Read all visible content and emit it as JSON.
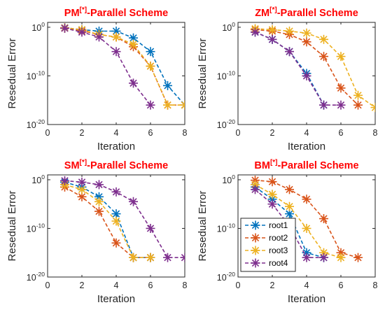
{
  "colors": {
    "root1": "#0072bd",
    "root2": "#d95319",
    "root3": "#edb120",
    "root4": "#7e2f8e",
    "title": "#ff0000"
  },
  "chart_data": [
    {
      "type": "line",
      "title": {
        "main": "PM",
        "sup": "[*]",
        "rest": "-Parallel Scheme"
      },
      "xlabel": "Iteration",
      "ylabel": "Resedual Error",
      "xlim": [
        0,
        8
      ],
      "xticks": [
        "0",
        "2",
        "4",
        "6",
        "8"
      ],
      "ylim_log10": [
        -20,
        1
      ],
      "yticks": [
        {
          "base": "10",
          "exp": "0"
        },
        {
          "base": "10",
          "exp": "-10"
        },
        {
          "base": "10",
          "exp": "-20"
        }
      ],
      "yscale": "log",
      "grid": false,
      "series": [
        {
          "name": "root1",
          "x": [
            1,
            2,
            3,
            4,
            5,
            6,
            7,
            8
          ],
          "log10_y": [
            -0.1,
            -0.5,
            -0.8,
            -0.8,
            -2.2,
            -5.0,
            -12.0,
            -16.0
          ]
        },
        {
          "name": "root2",
          "x": [
            1,
            2,
            3,
            4,
            5,
            6,
            7,
            8
          ],
          "log10_y": [
            -0.2,
            -0.7,
            -1.5,
            -2.0,
            -4.0,
            -8.0,
            -16.0,
            -16.0
          ]
        },
        {
          "name": "root3",
          "x": [
            1,
            2,
            3,
            4,
            5,
            6,
            7,
            8
          ],
          "log10_y": [
            -0.1,
            -0.5,
            -1.5,
            -2.0,
            -3.5,
            -8.0,
            -16.0,
            -16.0
          ]
        },
        {
          "name": "root4",
          "x": [
            1,
            2,
            3,
            4,
            5,
            6
          ],
          "log10_y": [
            -0.2,
            -1.0,
            -2.0,
            -5.0,
            -11.5,
            -16.0
          ]
        }
      ]
    },
    {
      "type": "line",
      "title": {
        "main": "ZM",
        "sup": "[*]",
        "rest": "-Parallel Scheme"
      },
      "xlabel": "Iteration",
      "ylabel": "Resedual Error",
      "xlim": [
        0,
        8
      ],
      "xticks": [
        "0",
        "2",
        "4",
        "6",
        "8"
      ],
      "ylim_log10": [
        -20,
        1
      ],
      "yticks": [
        {
          "base": "10",
          "exp": "0"
        },
        {
          "base": "10",
          "exp": "-10"
        },
        {
          "base": "10",
          "exp": "-20"
        }
      ],
      "yscale": "log",
      "grid": false,
      "series": [
        {
          "name": "root1",
          "x": [
            1,
            2,
            3,
            4,
            5
          ],
          "log10_y": [
            -1.0,
            -2.5,
            -5.0,
            -9.5,
            -16.0
          ]
        },
        {
          "name": "root2",
          "x": [
            1,
            2,
            3,
            4,
            5,
            6,
            7
          ],
          "log10_y": [
            -0.5,
            -0.8,
            -1.5,
            -3.0,
            -6.0,
            -12.5,
            -16.0
          ]
        },
        {
          "name": "root3",
          "x": [
            1,
            2,
            3,
            4,
            5,
            6,
            7,
            8
          ],
          "log10_y": [
            -0.3,
            -0.5,
            -0.8,
            -1.2,
            -2.5,
            -6.0,
            -14.0,
            -16.5
          ]
        },
        {
          "name": "root4",
          "x": [
            1,
            2,
            3,
            4,
            5,
            6
          ],
          "log10_y": [
            -1.0,
            -2.5,
            -5.0,
            -10.0,
            -16.0,
            -16.0
          ]
        }
      ]
    },
    {
      "type": "line",
      "title": {
        "main": "SM",
        "sup": "[*]",
        "rest": "-Parallel Scheme"
      },
      "xlabel": "Iteration",
      "ylabel": "Resedual Error",
      "xlim": [
        0,
        8
      ],
      "xticks": [
        "0",
        "2",
        "4",
        "6",
        "8"
      ],
      "ylim_log10": [
        -20,
        1
      ],
      "yticks": [
        {
          "base": "10",
          "exp": "0"
        },
        {
          "base": "10",
          "exp": "-10"
        },
        {
          "base": "10",
          "exp": "-20"
        }
      ],
      "yscale": "log",
      "grid": false,
      "series": [
        {
          "name": "root1",
          "x": [
            1,
            2,
            3,
            4,
            5,
            6
          ],
          "log10_y": [
            -0.5,
            -1.5,
            -3.5,
            -7.0,
            -16.0,
            -16.0
          ]
        },
        {
          "name": "root2",
          "x": [
            1,
            2,
            3,
            4,
            5,
            6
          ],
          "log10_y": [
            -1.5,
            -3.5,
            -6.5,
            -13.0,
            -16.0,
            -16.0
          ]
        },
        {
          "name": "root3",
          "x": [
            1,
            2,
            3,
            4,
            5,
            6
          ],
          "log10_y": [
            -1.0,
            -2.0,
            -4.5,
            -8.5,
            -16.0,
            -16.0
          ]
        },
        {
          "name": "root4",
          "x": [
            1,
            2,
            3,
            4,
            5,
            6,
            7,
            8
          ],
          "log10_y": [
            -0.2,
            -0.5,
            -1.0,
            -2.5,
            -4.5,
            -10.0,
            -16.0,
            -16.0
          ]
        }
      ]
    },
    {
      "type": "line",
      "title": {
        "main": "BM",
        "sup": "[*]",
        "rest": "-Parallel Scheme"
      },
      "xlabel": "Iteration",
      "ylabel": "Resedual Error",
      "xlim": [
        0,
        8
      ],
      "xticks": [
        "0",
        "2",
        "4",
        "6",
        "8"
      ],
      "ylim_log10": [
        -20,
        1
      ],
      "yticks": [
        {
          "base": "10",
          "exp": "0"
        },
        {
          "base": "10",
          "exp": "-10"
        },
        {
          "base": "10",
          "exp": "-20"
        }
      ],
      "yscale": "log",
      "grid": false,
      "legend": {
        "placement": "bottom-left",
        "entries": [
          "root1",
          "root2",
          "root3",
          "root4"
        ]
      },
      "series": [
        {
          "name": "root1",
          "x": [
            1,
            2,
            3,
            4,
            5
          ],
          "log10_y": [
            -1.5,
            -4.0,
            -7.0,
            -15.0,
            -16.0
          ]
        },
        {
          "name": "root2",
          "x": [
            1,
            2,
            3,
            4,
            5,
            6,
            7
          ],
          "log10_y": [
            -0.1,
            -0.4,
            -2.0,
            -4.0,
            -8.0,
            -15.0,
            -16.0
          ]
        },
        {
          "name": "root3",
          "x": [
            1,
            2,
            3,
            4,
            5,
            6
          ],
          "log10_y": [
            -1.0,
            -3.0,
            -5.5,
            -10.0,
            -15.0,
            -16.0
          ]
        },
        {
          "name": "root4",
          "x": [
            1,
            2,
            3,
            4,
            5
          ],
          "log10_y": [
            -2.0,
            -5.0,
            -9.5,
            -16.0,
            -16.0
          ]
        }
      ]
    }
  ]
}
